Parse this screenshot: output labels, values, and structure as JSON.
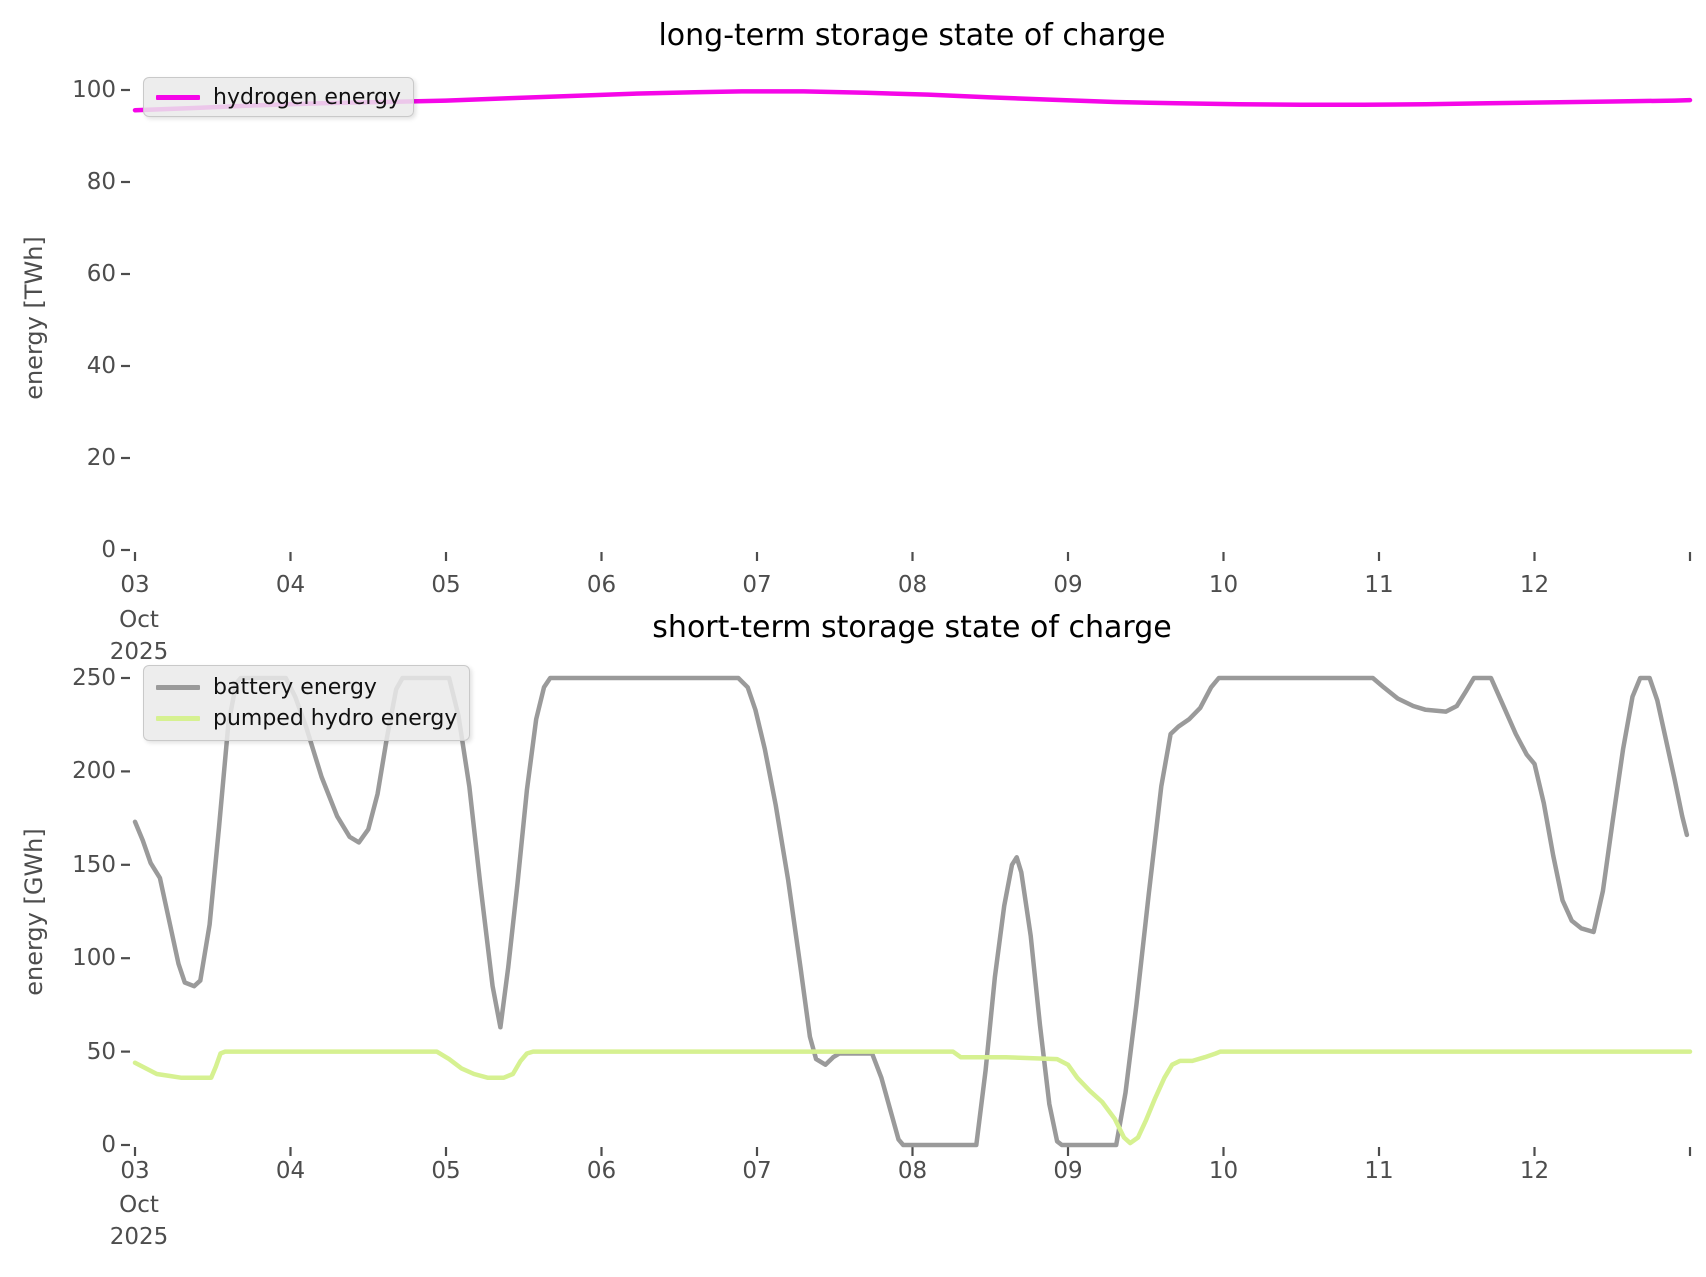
{
  "page_background": "#ffffff",
  "tick_color": "#4d4d4d",
  "chart_data": [
    {
      "type": "line",
      "title": "long-term storage state of charge",
      "ylabel": "energy [TWh]",
      "xlabel": "",
      "ylim": [
        0,
        105
      ],
      "xlim_dates": [
        "03 Oct 2025",
        "13 Oct 2025"
      ],
      "grid": false,
      "legend_position": "upper left",
      "y_ticks": [
        0,
        20,
        40,
        60,
        80,
        100
      ],
      "x_ticks": [
        {
          "v": 3,
          "label": "03"
        },
        {
          "v": 4,
          "label": "04"
        },
        {
          "v": 5,
          "label": "05"
        },
        {
          "v": 6,
          "label": "06"
        },
        {
          "v": 7,
          "label": "07"
        },
        {
          "v": 8,
          "label": "08"
        },
        {
          "v": 9,
          "label": "09"
        },
        {
          "v": 10,
          "label": "10"
        },
        {
          "v": 11,
          "label": "11"
        },
        {
          "v": 12,
          "label": "12"
        },
        {
          "v": 13,
          "label": ""
        }
      ],
      "x_sub_labels": [
        "Oct",
        "2025"
      ],
      "series": [
        {
          "name": "hydrogen energy",
          "color": "#f506e8",
          "points": [
            [
              3.0,
              95.6
            ],
            [
              3.4,
              96.1
            ],
            [
              3.8,
              96.7
            ],
            [
              4.2,
              97.1
            ],
            [
              4.6,
              97.4
            ],
            [
              5.0,
              97.7
            ],
            [
              5.4,
              98.2
            ],
            [
              5.8,
              98.7
            ],
            [
              6.2,
              99.2
            ],
            [
              6.6,
              99.5
            ],
            [
              6.9,
              99.7
            ],
            [
              7.3,
              99.7
            ],
            [
              7.7,
              99.4
            ],
            [
              8.1,
              99.0
            ],
            [
              8.5,
              98.4
            ],
            [
              8.9,
              97.9
            ],
            [
              9.3,
              97.4
            ],
            [
              9.7,
              97.1
            ],
            [
              10.1,
              96.9
            ],
            [
              10.5,
              96.8
            ],
            [
              10.9,
              96.8
            ],
            [
              11.3,
              96.9
            ],
            [
              11.7,
              97.1
            ],
            [
              12.1,
              97.3
            ],
            [
              12.5,
              97.5
            ],
            [
              12.9,
              97.7
            ],
            [
              13.0,
              97.8
            ]
          ]
        }
      ]
    },
    {
      "type": "line",
      "title": "short-term storage state of charge",
      "ylabel": "energy [GWh]",
      "xlabel": "",
      "ylim": [
        0,
        255
      ],
      "xlim_dates": [
        "03 Oct 2025",
        "13 Oct 2025"
      ],
      "grid": false,
      "legend_position": "upper left",
      "y_ticks": [
        0,
        50,
        100,
        150,
        200,
        250
      ],
      "x_ticks": [
        {
          "v": 3,
          "label": "03"
        },
        {
          "v": 4,
          "label": "04"
        },
        {
          "v": 5,
          "label": "05"
        },
        {
          "v": 6,
          "label": "06"
        },
        {
          "v": 7,
          "label": "07"
        },
        {
          "v": 8,
          "label": "08"
        },
        {
          "v": 9,
          "label": "09"
        },
        {
          "v": 10,
          "label": "10"
        },
        {
          "v": 11,
          "label": "11"
        },
        {
          "v": 12,
          "label": "12"
        },
        {
          "v": 13,
          "label": ""
        }
      ],
      "x_sub_labels": [
        "Oct",
        "2025"
      ],
      "series": [
        {
          "name": "battery energy",
          "color": "#9a9a9a",
          "points": [
            [
              3.0,
              173
            ],
            [
              3.05,
              163
            ],
            [
              3.1,
              151
            ],
            [
              3.16,
              143
            ],
            [
              3.22,
              120
            ],
            [
              3.28,
              97
            ],
            [
              3.32,
              87
            ],
            [
              3.38,
              85
            ],
            [
              3.42,
              88
            ],
            [
              3.48,
              118
            ],
            [
              3.54,
              170
            ],
            [
              3.6,
              225
            ],
            [
              3.65,
              247
            ],
            [
              3.68,
              250
            ],
            [
              3.97,
              250
            ],
            [
              4.03,
              240
            ],
            [
              4.1,
              224
            ],
            [
              4.2,
              197
            ],
            [
              4.3,
              176
            ],
            [
              4.38,
              165
            ],
            [
              4.44,
              162
            ],
            [
              4.5,
              169
            ],
            [
              4.56,
              188
            ],
            [
              4.62,
              218
            ],
            [
              4.68,
              244
            ],
            [
              4.72,
              250
            ],
            [
              5.02,
              250
            ],
            [
              5.08,
              230
            ],
            [
              5.15,
              192
            ],
            [
              5.22,
              140
            ],
            [
              5.3,
              85
            ],
            [
              5.35,
              63
            ],
            [
              5.4,
              95
            ],
            [
              5.46,
              140
            ],
            [
              5.52,
              190
            ],
            [
              5.58,
              228
            ],
            [
              5.63,
              245
            ],
            [
              5.67,
              250
            ],
            [
              6.88,
              250
            ],
            [
              6.94,
              245
            ],
            [
              6.99,
              233
            ],
            [
              7.05,
              212
            ],
            [
              7.12,
              182
            ],
            [
              7.2,
              142
            ],
            [
              7.28,
              95
            ],
            [
              7.34,
              58
            ],
            [
              7.38,
              46
            ],
            [
              7.44,
              43
            ],
            [
              7.49,
              47
            ],
            [
              7.53,
              49
            ],
            [
              7.74,
              49
            ],
            [
              7.8,
              36
            ],
            [
              7.86,
              18
            ],
            [
              7.91,
              3
            ],
            [
              7.94,
              0
            ],
            [
              8.41,
              0
            ],
            [
              8.47,
              40
            ],
            [
              8.53,
              90
            ],
            [
              8.59,
              128
            ],
            [
              8.64,
              150
            ],
            [
              8.67,
              154
            ],
            [
              8.7,
              146
            ],
            [
              8.76,
              112
            ],
            [
              8.82,
              64
            ],
            [
              8.88,
              22
            ],
            [
              8.93,
              2
            ],
            [
              8.96,
              0
            ],
            [
              9.31,
              0
            ],
            [
              9.37,
              28
            ],
            [
              9.44,
              75
            ],
            [
              9.52,
              135
            ],
            [
              9.6,
              192
            ],
            [
              9.66,
              220
            ],
            [
              9.71,
              224
            ],
            [
              9.78,
              228
            ],
            [
              9.85,
              234
            ],
            [
              9.92,
              245
            ],
            [
              9.97,
              250
            ],
            [
              10.96,
              250
            ],
            [
              11.03,
              245
            ],
            [
              11.12,
              239
            ],
            [
              11.22,
              235
            ],
            [
              11.3,
              233
            ],
            [
              11.43,
              232
            ],
            [
              11.5,
              235
            ],
            [
              11.56,
              243
            ],
            [
              11.61,
              250
            ],
            [
              11.72,
              250
            ],
            [
              11.79,
              237
            ],
            [
              11.88,
              220
            ],
            [
              11.95,
              209
            ],
            [
              12.0,
              204
            ],
            [
              12.06,
              183
            ],
            [
              12.12,
              155
            ],
            [
              12.18,
              131
            ],
            [
              12.24,
              120
            ],
            [
              12.3,
              116
            ],
            [
              12.38,
              114
            ],
            [
              12.44,
              136
            ],
            [
              12.5,
              172
            ],
            [
              12.57,
              212
            ],
            [
              12.63,
              240
            ],
            [
              12.68,
              250
            ],
            [
              12.74,
              250
            ],
            [
              12.79,
              238
            ],
            [
              12.84,
              219
            ],
            [
              12.9,
              196
            ],
            [
              12.95,
              176
            ],
            [
              12.98,
              166
            ]
          ]
        },
        {
          "name": "pumped hydro energy",
          "color": "#d6f191",
          "points": [
            [
              3.0,
              44
            ],
            [
              3.07,
              41
            ],
            [
              3.14,
              38
            ],
            [
              3.22,
              37
            ],
            [
              3.3,
              36
            ],
            [
              3.49,
              36
            ],
            [
              3.52,
              42
            ],
            [
              3.55,
              49
            ],
            [
              3.58,
              50
            ],
            [
              4.94,
              50
            ],
            [
              5.02,
              46
            ],
            [
              5.1,
              41
            ],
            [
              5.18,
              38
            ],
            [
              5.27,
              36
            ],
            [
              5.37,
              36
            ],
            [
              5.43,
              38
            ],
            [
              5.48,
              45
            ],
            [
              5.52,
              49
            ],
            [
              5.56,
              50
            ],
            [
              8.26,
              50
            ],
            [
              8.31,
              47
            ],
            [
              8.6,
              47
            ],
            [
              8.93,
              46
            ],
            [
              9.0,
              43
            ],
            [
              9.06,
              36
            ],
            [
              9.14,
              29
            ],
            [
              9.22,
              23
            ],
            [
              9.3,
              14
            ],
            [
              9.36,
              4
            ],
            [
              9.4,
              1
            ],
            [
              9.45,
              4
            ],
            [
              9.5,
              13
            ],
            [
              9.56,
              25
            ],
            [
              9.62,
              36
            ],
            [
              9.67,
              43
            ],
            [
              9.72,
              45
            ],
            [
              9.8,
              45
            ],
            [
              9.88,
              47
            ],
            [
              9.95,
              49
            ],
            [
              9.98,
              50
            ],
            [
              13.0,
              50
            ]
          ]
        }
      ]
    }
  ]
}
